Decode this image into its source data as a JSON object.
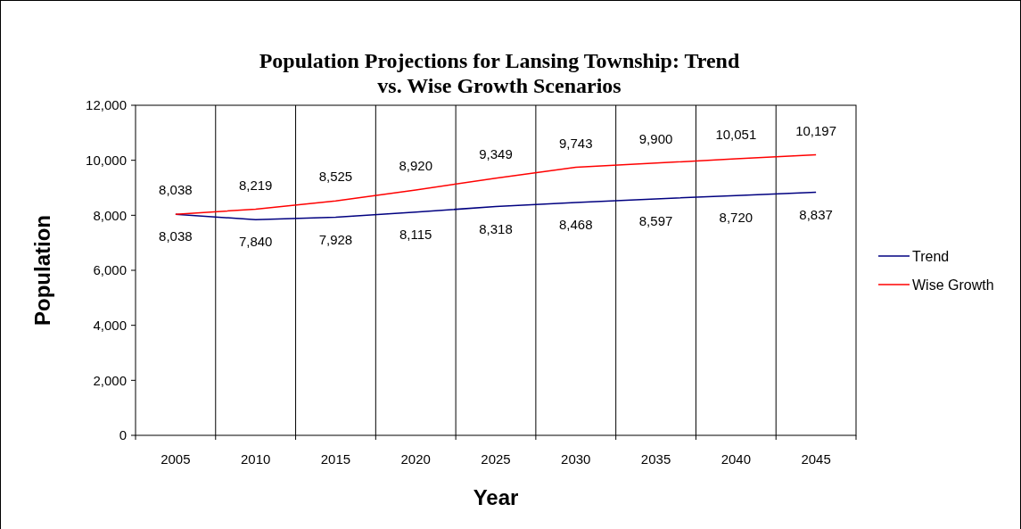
{
  "chart_data": {
    "type": "line",
    "title": "Population Projections for Lansing Township: Trend vs. Wise Growth Scenarios",
    "xlabel": "Year",
    "ylabel": "Population",
    "categories": [
      "2005",
      "2010",
      "2015",
      "2020",
      "2025",
      "2030",
      "2035",
      "2040",
      "2045"
    ],
    "series": [
      {
        "name": "Trend",
        "color": "#000080",
        "values": [
          8038,
          7840,
          7928,
          8115,
          8318,
          8468,
          8597,
          8720,
          8837
        ],
        "value_labels": [
          "8,038",
          "7,840",
          "7,928",
          "8,115",
          "8,318",
          "8,468",
          "8,597",
          "8,720",
          "8,837"
        ]
      },
      {
        "name": "Wise Growth",
        "color": "#ff0000",
        "values": [
          8038,
          8219,
          8525,
          8920,
          9349,
          9743,
          9900,
          10051,
          10197
        ],
        "value_labels": [
          "8,038",
          "8,219",
          "8,525",
          "8,920",
          "9,349",
          "9,743",
          "9,900",
          "10,051",
          "10,197"
        ]
      }
    ],
    "ylim": [
      0,
      12000
    ],
    "yticks": [
      {
        "value": 0,
        "label": "0"
      },
      {
        "value": 2000,
        "label": "2,000"
      },
      {
        "value": 4000,
        "label": "4,000"
      },
      {
        "value": 6000,
        "label": "6,000"
      },
      {
        "value": 8000,
        "label": "8,000"
      },
      {
        "value": 10000,
        "label": "10,000"
      },
      {
        "value": 12000,
        "label": "12,000"
      }
    ],
    "grid": "x",
    "legend": "right",
    "marker": "none",
    "line_style": "solid"
  }
}
